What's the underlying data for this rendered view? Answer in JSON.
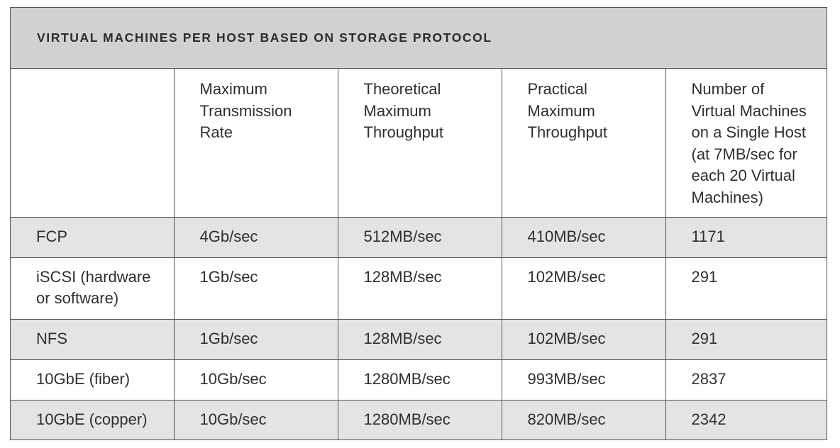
{
  "title": "VIRTUAL MACHINES PER HOST BASED ON STORAGE PROTOCOL",
  "headers": [
    "",
    "Maximum\nTransmission\nRate",
    "Theoretical\nMaximum\nThroughput",
    "Practical\nMaximum\nThroughput",
    "Number of\nVirtual Machines\non a Single Host\n(at 7MB/sec for\neach 20 Virtual\nMachines)"
  ],
  "rows": [
    [
      "FCP",
      "4Gb/sec",
      "512MB/sec",
      "410MB/sec",
      "1171"
    ],
    [
      "iSCSI (hardware\nor software)",
      "1Gb/sec",
      "128MB/sec",
      "102MB/sec",
      "291"
    ],
    [
      "NFS",
      "1Gb/sec",
      "128MB/sec",
      "102MB/sec",
      "291"
    ],
    [
      "10GbE (fiber)",
      "10Gb/sec",
      "1280MB/sec",
      "993MB/sec",
      "2837"
    ],
    [
      "10GbE (copper)",
      "10Gb/sec",
      "1280MB/sec",
      "820MB/sec",
      "2342"
    ]
  ],
  "colors": {
    "title_bg": "#d1d1d1",
    "shaded_row": "#e4e4e4",
    "border": "#555555"
  }
}
